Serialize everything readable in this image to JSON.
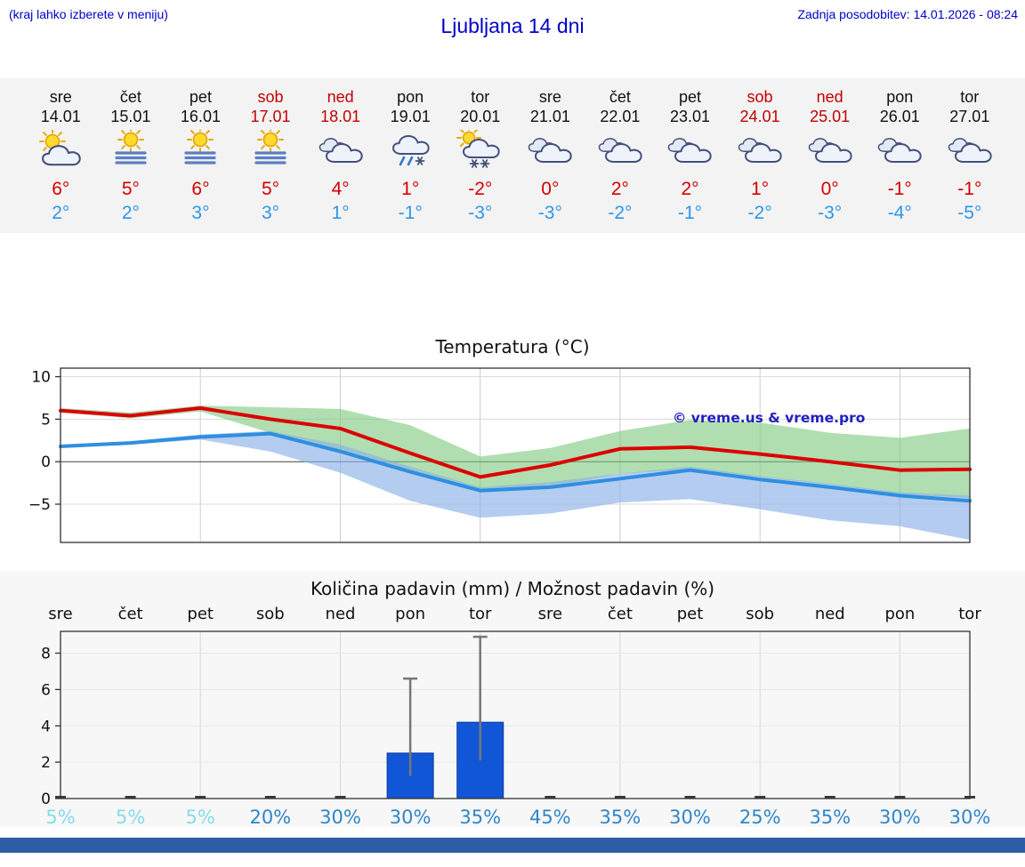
{
  "header": {
    "hint": "(kraj lahko izberete v meniju)",
    "title": "Ljubljana 14 dni",
    "updated": "Zadnja posodobitev: 14.01.2026 - 08:24"
  },
  "colors": {
    "link_blue": "#0000c8",
    "weekend_red": "#c40000",
    "temp_max_red": "#d40000",
    "temp_min_blue": "#2e96e8",
    "bottom_bar": "#2e5da6"
  },
  "forecast": {
    "days": [
      {
        "name": "sre",
        "date": "14.01",
        "weekend": false,
        "icon": "partly-sunny",
        "tmax": "6°",
        "tmin": "2°"
      },
      {
        "name": "čet",
        "date": "15.01",
        "weekend": false,
        "icon": "sun-fog",
        "tmax": "5°",
        "tmin": "2°"
      },
      {
        "name": "pet",
        "date": "16.01",
        "weekend": false,
        "icon": "sun-fog",
        "tmax": "6°",
        "tmin": "3°"
      },
      {
        "name": "sob",
        "date": "17.01",
        "weekend": true,
        "icon": "sun-fog",
        "tmax": "5°",
        "tmin": "3°"
      },
      {
        "name": "ned",
        "date": "18.01",
        "weekend": true,
        "icon": "cloudy",
        "tmax": "4°",
        "tmin": "1°"
      },
      {
        "name": "pon",
        "date": "19.01",
        "weekend": false,
        "icon": "sleet",
        "tmax": "1°",
        "tmin": "-1°"
      },
      {
        "name": "tor",
        "date": "20.01",
        "weekend": false,
        "icon": "snow-sun",
        "tmax": "-2°",
        "tmin": "-3°"
      },
      {
        "name": "sre",
        "date": "21.01",
        "weekend": false,
        "icon": "cloudy",
        "tmax": "0°",
        "tmin": "-3°"
      },
      {
        "name": "čet",
        "date": "22.01",
        "weekend": false,
        "icon": "cloudy",
        "tmax": "2°",
        "tmin": "-2°"
      },
      {
        "name": "pet",
        "date": "23.01",
        "weekend": false,
        "icon": "cloudy",
        "tmax": "2°",
        "tmin": "-1°"
      },
      {
        "name": "sob",
        "date": "24.01",
        "weekend": true,
        "icon": "cloudy",
        "tmax": "1°",
        "tmin": "-2°"
      },
      {
        "name": "ned",
        "date": "25.01",
        "weekend": true,
        "icon": "cloudy",
        "tmax": "0°",
        "tmin": "-3°"
      },
      {
        "name": "pon",
        "date": "26.01",
        "weekend": false,
        "icon": "cloudy",
        "tmax": "-1°",
        "tmin": "-4°"
      },
      {
        "name": "tor",
        "date": "27.01",
        "weekend": false,
        "icon": "cloudy",
        "tmax": "-1°",
        "tmin": "-5°"
      }
    ]
  },
  "chart_data": [
    {
      "type": "line",
      "title": "Temperatura (°C)",
      "x": [
        "sre 14.01",
        "čet 15.01",
        "pet 16.01",
        "sob 17.01",
        "ned 18.01",
        "pon 19.01",
        "tor 20.01",
        "sre 21.01",
        "čet 22.01",
        "pet 23.01",
        "sob 24.01",
        "ned 25.01",
        "pon 26.01",
        "tor 27.01"
      ],
      "series": [
        {
          "name": "najvišja temperatura",
          "color": "#dd0000",
          "values": [
            6,
            5.4,
            6.3,
            5,
            3.9,
            1,
            -1.8,
            -0.4,
            1.5,
            1.7,
            0.9,
            0,
            -1,
            -0.9
          ]
        },
        {
          "name": "najnižja temperatura",
          "color": "#2e8fe0",
          "values": [
            1.8,
            2.2,
            2.9,
            3.3,
            1.2,
            -1.2,
            -3.4,
            -3,
            -2,
            -1,
            -2.1,
            -3,
            -4,
            -4.6
          ]
        }
      ],
      "bands": [
        {
          "name": "razpon najvišje",
          "color": "#7cc87c",
          "opacity": 0.6,
          "upper": [
            6.3,
            5.8,
            6.6,
            6.4,
            6.2,
            4.3,
            0.6,
            1.6,
            3.6,
            4.9,
            4.6,
            3.4,
            2.8,
            3.9
          ],
          "lower": [
            5.8,
            5.1,
            5.9,
            3.4,
            1.4,
            -1.2,
            -3.6,
            -3,
            -1.4,
            -0.9,
            -1.8,
            -2.7,
            -3.8,
            -4.3
          ]
        },
        {
          "name": "razpon najnižje",
          "color": "#8cb0e8",
          "opacity": 0.65,
          "upper": [
            2,
            2.4,
            3.2,
            3.6,
            2,
            -0.6,
            -3,
            -2.4,
            -1.4,
            -0.6,
            -1.7,
            -2.6,
            -3.6,
            -4
          ],
          "lower": [
            1.6,
            2,
            2.6,
            1.2,
            -1.3,
            -4.6,
            -6.6,
            -6.1,
            -4.8,
            -4.4,
            -5.6,
            -6.9,
            -7.6,
            -9.2
          ]
        }
      ],
      "ylim": [
        -9.5,
        11
      ],
      "yticks": [
        -5,
        0,
        5,
        10
      ],
      "grid": true,
      "legend": false,
      "watermark": "© vreme.us & vreme.pro",
      "watermark_color": "#2020c0"
    },
    {
      "type": "bar",
      "title": "Količina padavin (mm) / Možnost padavin (%)",
      "categories": [
        "sre",
        "čet",
        "pet",
        "sob",
        "ned",
        "pon",
        "tor",
        "sre",
        "čet",
        "pet",
        "sob",
        "ned",
        "pon",
        "tor"
      ],
      "values": [
        0,
        0,
        0,
        0,
        0,
        2.5,
        4.2,
        0,
        0,
        0,
        0,
        0,
        0,
        0
      ],
      "error_high": [
        0,
        0,
        0,
        0,
        0,
        6.6,
        8.9,
        0,
        0,
        0,
        0,
        0,
        0,
        0
      ],
      "probabilities": [
        "5%",
        "5%",
        "5%",
        "20%",
        "30%",
        "30%",
        "35%",
        "45%",
        "35%",
        "30%",
        "25%",
        "35%",
        "30%",
        "30%"
      ],
      "ylim": [
        0,
        9.2
      ],
      "yticks": [
        0,
        2,
        4,
        6,
        8
      ],
      "grid": true,
      "bar_color": "#1256d8",
      "prob_color": "#2f86c8",
      "prob_color_low": "#85dde8"
    }
  ]
}
